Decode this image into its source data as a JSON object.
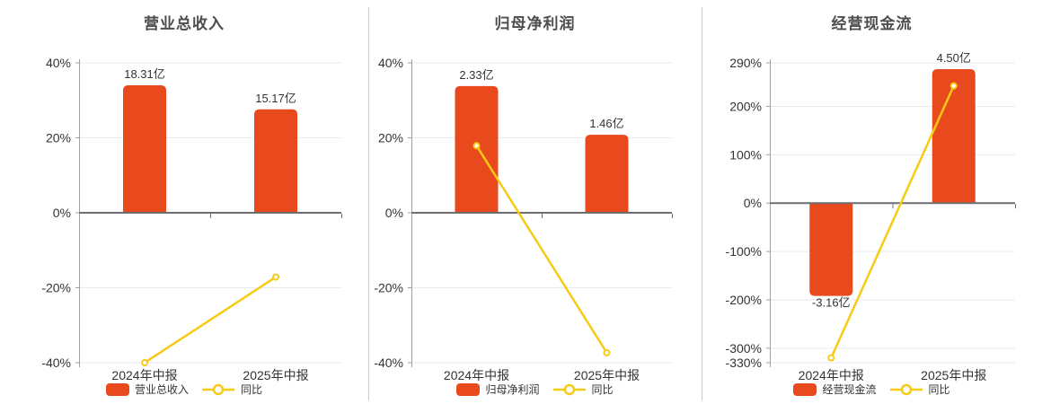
{
  "colors": {
    "bar": "#e8491d",
    "line": "#f7cb15",
    "marker_fill": "#ffffff",
    "title_text": "#4d4d4d",
    "axis_text": "#333333",
    "value_label_text": "#333333",
    "zero_axis_line": "#6e6e70",
    "y_axis_line": "#a0a0a0",
    "gridline": "#e5eaf3",
    "panel_divider": "#cccccc",
    "background": "#ffffff"
  },
  "chart_data": [
    {
      "type": "bar",
      "title": "营业总收入",
      "categories": [
        "2024年中报",
        "2025年中报"
      ],
      "series": [
        {
          "name": "营业总收入",
          "kind": "bar",
          "unit": "亿",
          "values": [
            18.31,
            15.17
          ],
          "value_labels": [
            "18.31亿",
            "15.17亿"
          ],
          "bar_tops_axis_pct": [
            34.0,
            27.6
          ]
        },
        {
          "name": "同比",
          "kind": "line",
          "unit": "%",
          "values": [
            -40.0,
            -17.15
          ]
        }
      ],
      "y_axis": {
        "tick_labels": [
          "40%",
          "20%",
          "0%",
          "-20%",
          "-40%"
        ],
        "tick_values": [
          40,
          20,
          0,
          -20,
          -40
        ],
        "min": -40,
        "max": 40
      },
      "grid": true,
      "legend_position": "bottom",
      "legend": [
        {
          "label": "营业总收入",
          "marker": "bar-swatch"
        },
        {
          "label": "同比",
          "marker": "line-circle"
        }
      ]
    },
    {
      "type": "bar",
      "title": "归母净利润",
      "categories": [
        "2024年中报",
        "2025年中报"
      ],
      "series": [
        {
          "name": "归母净利润",
          "kind": "bar",
          "unit": "亿",
          "values": [
            2.33,
            1.46
          ],
          "value_labels": [
            "2.33亿",
            "1.46亿"
          ],
          "bar_tops_axis_pct": [
            33.8,
            20.8
          ]
        },
        {
          "name": "同比",
          "kind": "line",
          "unit": "%",
          "values": [
            17.9,
            -37.34
          ]
        }
      ],
      "y_axis": {
        "tick_labels": [
          "40%",
          "20%",
          "0%",
          "-20%",
          "-40%"
        ],
        "tick_values": [
          40,
          20,
          0,
          -20,
          -40
        ],
        "min": -40,
        "max": 40
      },
      "grid": true,
      "legend_position": "bottom",
      "legend": [
        {
          "label": "归母净利润",
          "marker": "bar-swatch"
        },
        {
          "label": "同比",
          "marker": "line-circle"
        }
      ]
    },
    {
      "type": "bar",
      "title": "经营现金流",
      "categories": [
        "2024年中报",
        "2025年中报"
      ],
      "series": [
        {
          "name": "经营现金流",
          "kind": "bar",
          "unit": "亿",
          "values": [
            -3.16,
            4.5
          ],
          "value_labels": [
            "-3.16亿",
            "4.50亿"
          ],
          "bar_tops_axis_pct": [
            -192.0,
            277.0
          ]
        },
        {
          "name": "同比",
          "kind": "line",
          "unit": "%",
          "values": [
            -320.0,
            242.41
          ]
        }
      ],
      "y_axis": {
        "tick_labels": [
          "290%",
          "200%",
          "100%",
          "0%",
          "-100%",
          "-200%",
          "-300%",
          "-330%"
        ],
        "tick_values": [
          290,
          200,
          100,
          0,
          -100,
          -200,
          -300,
          -330
        ],
        "min": -330,
        "max": 290
      },
      "grid": true,
      "legend_position": "bottom",
      "legend": [
        {
          "label": "经营现金流",
          "marker": "bar-swatch"
        },
        {
          "label": "同比",
          "marker": "line-circle"
        }
      ]
    }
  ]
}
